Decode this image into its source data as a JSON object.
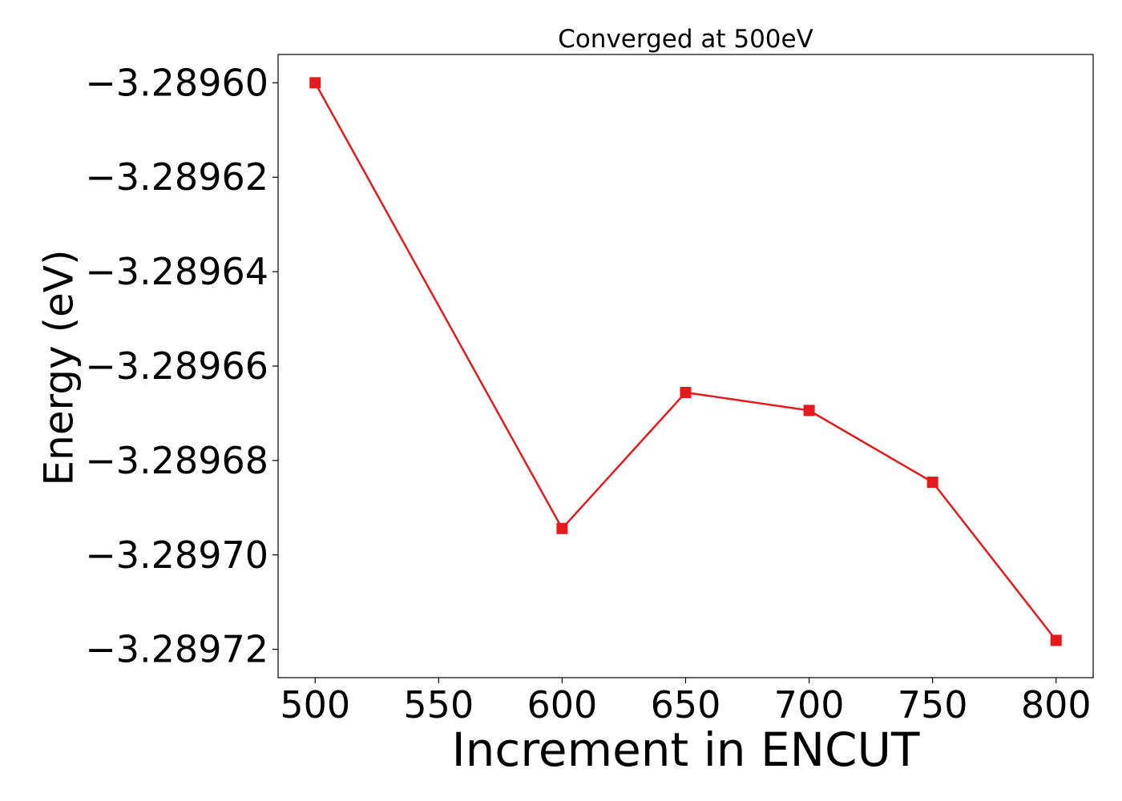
{
  "chart_data": {
    "type": "line",
    "title": "Converged at 500eV",
    "xlabel": "Increment in ENCUT",
    "ylabel": "Energy (eV)",
    "xlim": [
      485,
      815
    ],
    "ylim": [
      -3.289726,
      -3.289594
    ],
    "x_ticks": [
      500,
      550,
      600,
      650,
      700,
      750,
      800
    ],
    "x_tick_labels": [
      "500",
      "550",
      "600",
      "650",
      "700",
      "750",
      "800"
    ],
    "y_ticks": [
      -3.2896,
      -3.28962,
      -3.28964,
      -3.28966,
      -3.28968,
      -3.2897,
      -3.28972
    ],
    "y_tick_labels": [
      "−3.28960",
      "−3.28962",
      "−3.28964",
      "−3.28966",
      "−3.28968",
      "−3.28970",
      "−3.28972"
    ],
    "grid": false,
    "series": [
      {
        "color": "#e41a1c",
        "marker": "square",
        "x": [
          500,
          600,
          650,
          700,
          750,
          800
        ],
        "y": [
          -3.2896,
          -3.2896944,
          -3.2896656,
          -3.2896694,
          -3.2896846,
          -3.2897181
        ]
      }
    ]
  }
}
